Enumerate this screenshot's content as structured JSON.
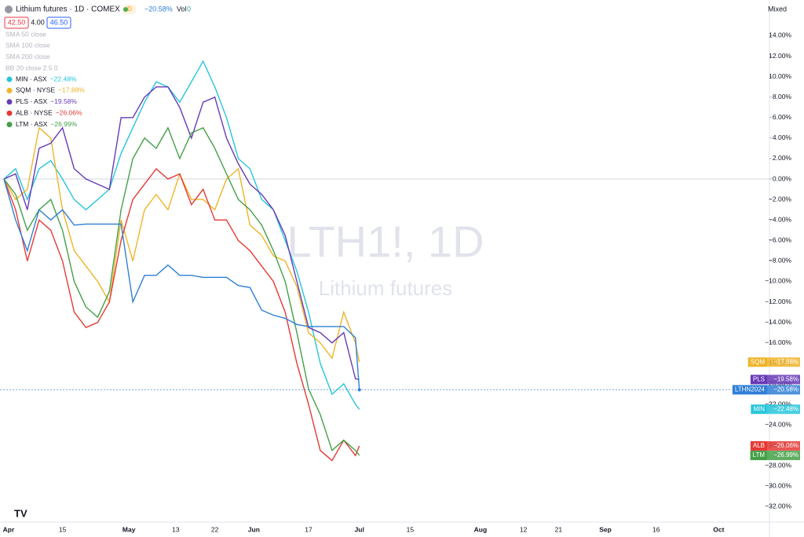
{
  "header": {
    "title": "Lithium futures · 1D · COMEX",
    "interval_badge": "D",
    "change": "−20.58%",
    "vol_label": "Vol",
    "vol_value": "0",
    "bid": "42.50",
    "spread": "4.00",
    "ask": "46.50",
    "scale_mode": "Mixed"
  },
  "indicators": [
    "SMA 50 close",
    "SMA 100 close",
    "SMA 200 close",
    "BB 20 close 2.5 0"
  ],
  "watermark": {
    "symbol": "LTH1!, 1D",
    "description": "Lithium futures"
  },
  "chart_data": {
    "type": "line",
    "x": [
      0,
      3,
      6,
      9,
      12,
      15,
      18,
      21,
      24,
      27,
      30,
      33,
      36,
      39,
      42,
      45,
      48,
      51,
      54,
      57,
      60,
      63,
      66,
      69,
      72,
      75,
      78,
      81,
      84,
      87,
      90,
      91
    ],
    "xlim": [
      0,
      196
    ],
    "xticks": [
      {
        "value": 0,
        "label": "Apr"
      },
      {
        "value": 15,
        "label": "15"
      },
      {
        "value": 32,
        "label": "May"
      },
      {
        "value": 44,
        "label": "13"
      },
      {
        "value": 54,
        "label": "22"
      },
      {
        "value": 64,
        "label": "Jun"
      },
      {
        "value": 78,
        "label": "17"
      },
      {
        "value": 91,
        "label": "Jul"
      },
      {
        "value": 104,
        "label": "15"
      },
      {
        "value": 122,
        "label": "Aug"
      },
      {
        "value": 133,
        "label": "12"
      },
      {
        "value": 142,
        "label": "21"
      },
      {
        "value": 154,
        "label": "Sep"
      },
      {
        "value": 167,
        "label": "16"
      },
      {
        "value": 183,
        "label": "Oct"
      }
    ],
    "ylim": [
      -33.5,
      17.1
    ],
    "yticks": [
      {
        "value": 14,
        "label": "14.00%"
      },
      {
        "value": 12,
        "label": "12.00%"
      },
      {
        "value": 10,
        "label": "10.00%"
      },
      {
        "value": 8,
        "label": "8.00%"
      },
      {
        "value": 6,
        "label": "6.00%"
      },
      {
        "value": 4,
        "label": "4.00%"
      },
      {
        "value": 2,
        "label": "2.00%"
      },
      {
        "value": 0,
        "label": "0.00%"
      },
      {
        "value": -2,
        "label": "−2.00%"
      },
      {
        "value": -4,
        "label": "−4.00%"
      },
      {
        "value": -6,
        "label": "−6.00%"
      },
      {
        "value": -8,
        "label": "−8.00%"
      },
      {
        "value": -10,
        "label": "−10.00%"
      },
      {
        "value": -12,
        "label": "−12.00%"
      },
      {
        "value": -14,
        "label": "−14.00%"
      },
      {
        "value": -16,
        "label": "−16.00%"
      },
      {
        "value": -18,
        "label": "−18.00%"
      },
      {
        "value": -20,
        "label": "−20.00%"
      },
      {
        "value": -22,
        "label": "−22.00%"
      },
      {
        "value": -24,
        "label": "−24.00%"
      },
      {
        "value": -26,
        "label": "−26.00%"
      },
      {
        "value": -28,
        "label": "−28.00%"
      },
      {
        "value": -30,
        "label": "−30.00%"
      },
      {
        "value": -32,
        "label": "−32.00%"
      }
    ],
    "series": [
      {
        "name": "MIN",
        "legend_label": "MIN · ASX",
        "value_label": "−22.48%",
        "color": "#26c6da",
        "values": [
          0,
          1,
          -2,
          1,
          1.8,
          0,
          -2,
          -3,
          -2,
          -1,
          2.5,
          5,
          7.5,
          9.5,
          9,
          7.5,
          9.5,
          11.5,
          9,
          6,
          2,
          1,
          -2,
          -3,
          -6,
          -9,
          -13,
          -18,
          -21,
          -20,
          -22,
          -22.48
        ]
      },
      {
        "name": "SQM",
        "legend_label": "SQM · NYSE",
        "value_label": "−17.88%",
        "color": "#f0b429",
        "values": [
          0,
          -2,
          -1,
          5,
          4,
          -3,
          -7,
          -8.5,
          -10,
          -12,
          -4,
          -8,
          -3,
          -1.5,
          -3,
          0.5,
          -2,
          -2,
          -3,
          0,
          1,
          -4.5,
          -5.5,
          -7.5,
          -8,
          -10.5,
          -15,
          -16,
          -17.5,
          -13,
          -16,
          -17.88
        ]
      },
      {
        "name": "PLS",
        "legend_label": "PLS · ASX",
        "value_label": "−19.58%",
        "color": "#673ab7",
        "values": [
          0,
          0.5,
          -3,
          3,
          3.5,
          5,
          1,
          0,
          -0.5,
          -1,
          6,
          6,
          8,
          9,
          9,
          7,
          4,
          7.5,
          8,
          4,
          1.5,
          -0.5,
          -1.5,
          -3,
          -5.5,
          -10,
          -14.5,
          -15,
          -16,
          -15,
          -19.5,
          -19.58
        ]
      },
      {
        "name": "ALB",
        "legend_label": "ALB · NYSE",
        "value_label": "−26.06%",
        "color": "#e53935",
        "values": [
          0,
          -3,
          -8,
          -4,
          -5,
          -8,
          -13,
          -14.5,
          -14,
          -12,
          -6,
          -2,
          -0.5,
          1,
          0,
          0.5,
          -2.5,
          -1,
          -4,
          -4,
          -6,
          -7,
          -8.5,
          -10,
          -13,
          -18,
          -22,
          -26.5,
          -27.5,
          -25.5,
          -27,
          -26.06
        ]
      },
      {
        "name": "LTM",
        "legend_label": "LTM · ASX",
        "value_label": "−26.99%",
        "color": "#43a047",
        "values": [
          0,
          -1.5,
          -5,
          -3,
          -2,
          -5,
          -10,
          -12.5,
          -13.5,
          -11,
          -3,
          2,
          4,
          3,
          5,
          2,
          4.5,
          5,
          3,
          0.5,
          -2,
          -3,
          -4.5,
          -7,
          -10,
          -15,
          -20.5,
          -23,
          -26.5,
          -25.5,
          -26.5,
          -26.99
        ]
      },
      {
        "name": "LTHN2024",
        "value_label": "−20.58%",
        "color": "#2f7fd6",
        "values": [
          0,
          -4,
          -7,
          -3,
          -4,
          -3,
          -4.5,
          -4.4,
          -4.4,
          -4.4,
          -4.4,
          -12,
          -9.4,
          -9.4,
          -8.4,
          -9.4,
          -9.4,
          -9.6,
          -9.6,
          -9.6,
          -10.4,
          -10.6,
          -12.8,
          -13.3,
          -13.6,
          -14.2,
          -14.4,
          -14.4,
          -14.4,
          -14.4,
          -15.5,
          -20.58
        ]
      }
    ]
  }
}
